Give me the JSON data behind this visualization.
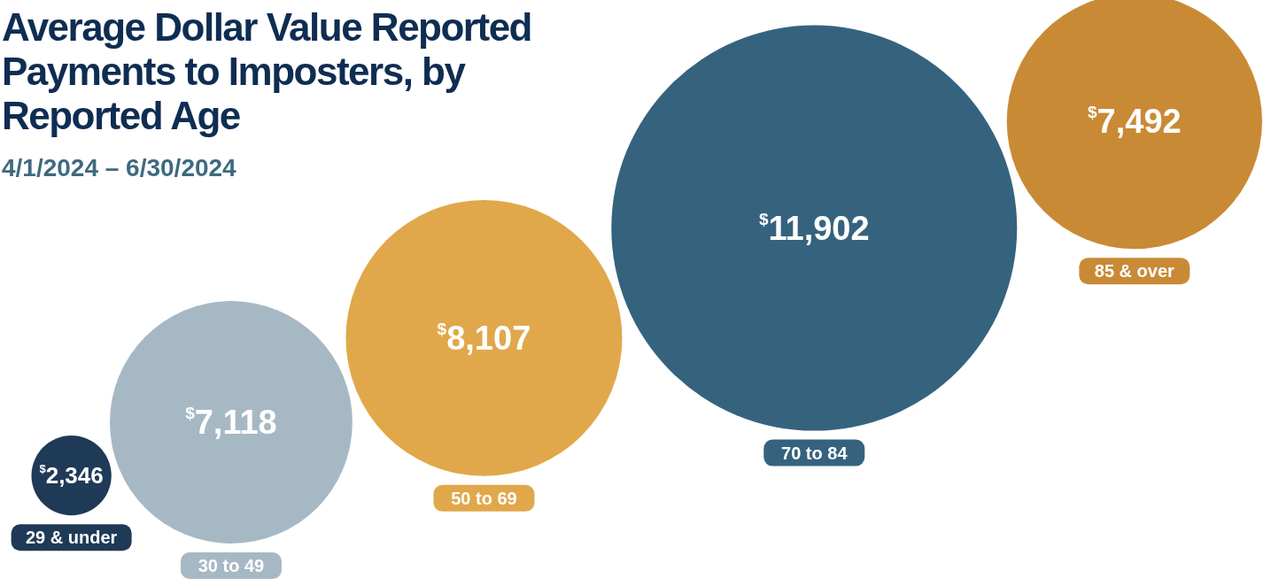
{
  "chart_data": {
    "type": "other",
    "title": "Average Dollar Value Reported Payments to Imposters, by Reported Age",
    "subtitle": "4/1/2024 – 6/30/2024",
    "categories": [
      "29 & under",
      "30 to 49",
      "50 to 69",
      "70 to 84",
      "85 & over"
    ],
    "values": [
      2346,
      7118,
      8107,
      11902,
      7492
    ],
    "value_labels": [
      "$^{$}$2,346",
      "$^{$}$7,118",
      "$^{$}$8,107",
      "$^{$}$11,902",
      "$^{$}$7,492"
    ],
    "colors": [
      "#1f3a56",
      "#a7b8c5",
      "#e0a84a",
      "#35637e",
      "#c98a35"
    ]
  }
}
